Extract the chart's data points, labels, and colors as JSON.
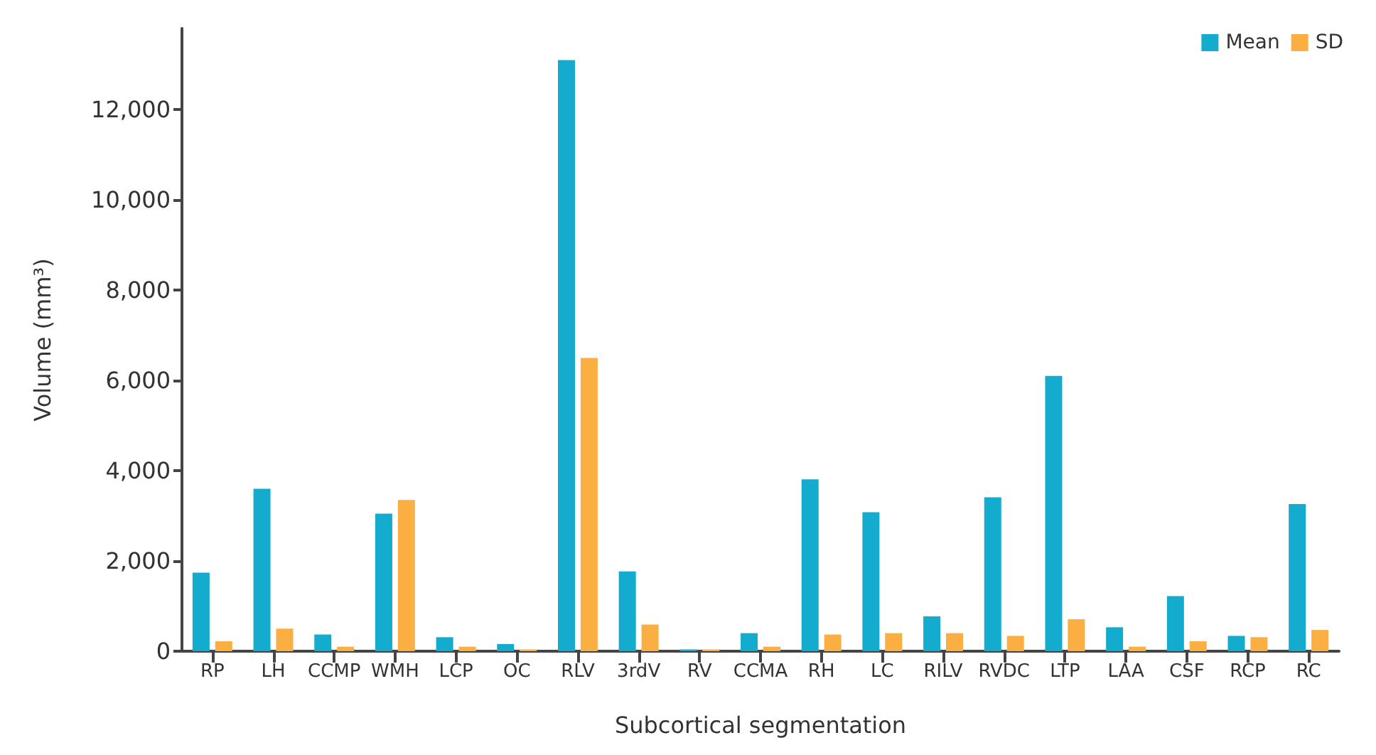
{
  "chart_data": {
    "type": "bar",
    "xlabel": "Subcortical segmentation",
    "ylabel": "Volume (mm³)",
    "categories": [
      "RP",
      "LH",
      "CCMP",
      "WMH",
      "LCP",
      "OC",
      "RLV",
      "3rdV",
      "RV",
      "CCMA",
      "RH",
      "LC",
      "RILV",
      "RVDC",
      "LTP",
      "LAA",
      "CSF",
      "RCP",
      "RC"
    ],
    "series": [
      {
        "name": "Mean",
        "color": "#14acce",
        "values": [
          1740,
          3600,
          370,
          3050,
          310,
          160,
          13100,
          1770,
          40,
          400,
          3810,
          3080,
          770,
          3410,
          6100,
          530,
          1220,
          340,
          3260
        ]
      },
      {
        "name": "SD",
        "color": "#fbae42",
        "values": [
          220,
          500,
          100,
          3350,
          100,
          40,
          6500,
          590,
          40,
          100,
          370,
          400,
          400,
          340,
          710,
          100,
          220,
          310,
          470
        ]
      }
    ],
    "ylim": [
      0,
      13800
    ],
    "yticks": [
      {
        "value": 0,
        "label": "0"
      },
      {
        "value": 2000,
        "label": "2,000"
      },
      {
        "value": 4000,
        "label": "4,000"
      },
      {
        "value": 6000,
        "label": "6,000"
      },
      {
        "value": 8000,
        "label": "8,000"
      },
      {
        "value": 10000,
        "label": "10,000"
      },
      {
        "value": 12000,
        "label": "12,000"
      }
    ],
    "legend": "top right"
  }
}
